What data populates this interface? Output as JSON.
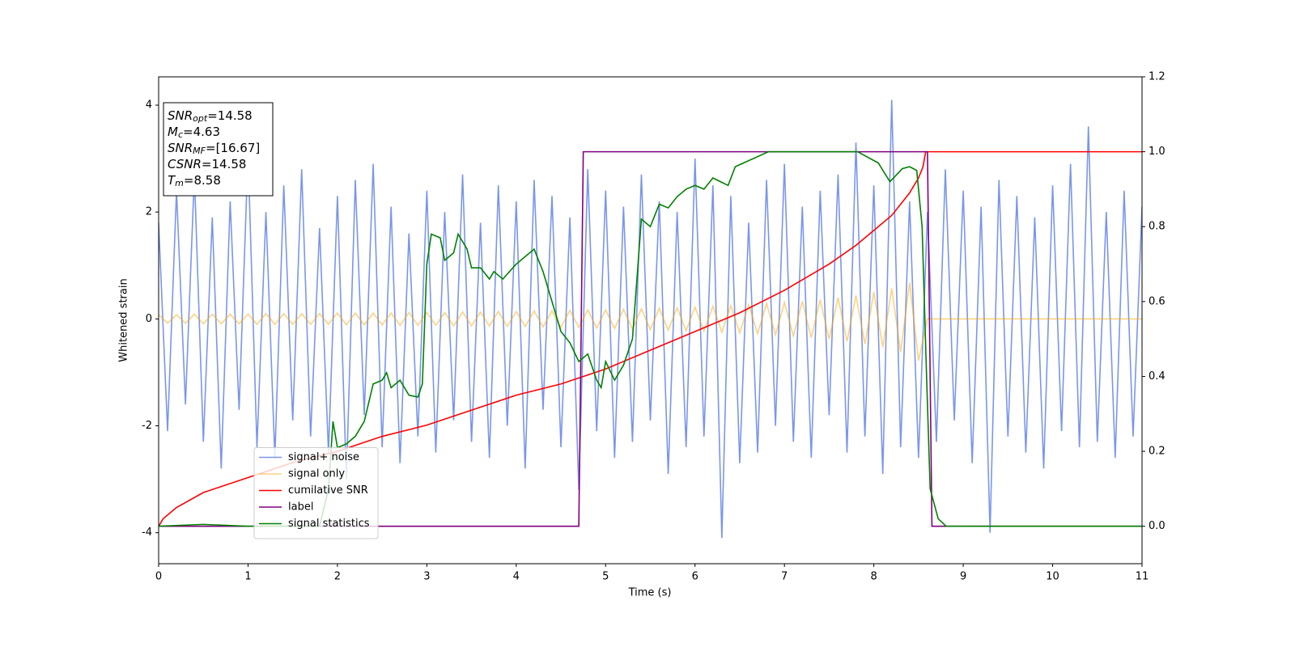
{
  "chart_data": {
    "type": "line",
    "xlabel": "Time (s)",
    "ylabel": "Whitened strain",
    "x": [
      0,
      0.1,
      0.2,
      0.3,
      0.4,
      0.5,
      0.6,
      0.7,
      0.8,
      0.9,
      1,
      1.1,
      1.2,
      1.3,
      1.4,
      1.5,
      1.6,
      1.7,
      1.8,
      1.9,
      2,
      2.1,
      2.2,
      2.3,
      2.4,
      2.5,
      2.6,
      2.7,
      2.8,
      2.9,
      3,
      3.1,
      3.2,
      3.3,
      3.4,
      3.5,
      3.6,
      3.7,
      3.8,
      3.9,
      4,
      4.1,
      4.2,
      4.3,
      4.4,
      4.5,
      4.6,
      4.7,
      4.8,
      4.9,
      5,
      5.1,
      5.2,
      5.3,
      5.4,
      5.5,
      5.6,
      5.7,
      5.8,
      5.9,
      6,
      6.1,
      6.2,
      6.3,
      6.4,
      6.5,
      6.6,
      6.7,
      6.8,
      6.9,
      7,
      7.1,
      7.2,
      7.3,
      7.4,
      7.5,
      7.6,
      7.7,
      7.8,
      7.9,
      8,
      8.1,
      8.2,
      8.3,
      8.4,
      8.5,
      8.6,
      8.7,
      8.8,
      8.9,
      9,
      9.1,
      9.2,
      9.3,
      9.4,
      9.5,
      9.6,
      9.7,
      9.8,
      9.9,
      10,
      10.1,
      10.2,
      10.3,
      10.4,
      10.5,
      10.6,
      10.7,
      10.8,
      10.9,
      11
    ],
    "series": [
      {
        "name": "signal+ noise",
        "color": "#4169e1",
        "alpha": 0.7,
        "values": [
          1.8,
          -2.1,
          2.4,
          -1.6,
          2.7,
          -2.3,
          1.9,
          -2.8,
          2.2,
          -1.7,
          3.1,
          -2.4,
          2.0,
          -2.6,
          2.5,
          -1.9,
          2.8,
          -2.2,
          1.7,
          -2.5,
          2.3,
          -3.0,
          2.6,
          -1.8,
          2.9,
          -2.4,
          2.1,
          -2.7,
          1.6,
          -2.2,
          2.4,
          -2.5,
          2.0,
          -1.9,
          2.7,
          -2.3,
          1.8,
          -2.6,
          2.5,
          -2.0,
          2.2,
          -2.8,
          2.6,
          -1.7,
          2.3,
          -2.4,
          1.9,
          -3.2,
          2.8,
          -2.1,
          2.4,
          -2.6,
          2.1,
          -2.3,
          2.7,
          -1.9,
          2.2,
          -2.9,
          2.0,
          -2.4,
          3.0,
          -2.2,
          2.5,
          -4.1,
          2.3,
          -2.7,
          1.8,
          -2.5,
          2.6,
          -2.0,
          2.9,
          -2.3,
          2.1,
          -2.6,
          2.4,
          -1.8,
          2.7,
          -2.5,
          3.3,
          -2.2,
          2.5,
          -2.9,
          4.1,
          -2.4,
          2.2,
          -2.6,
          2.0,
          -2.3,
          2.8,
          -1.9,
          2.4,
          -2.7,
          2.1,
          -4.0,
          2.6,
          -2.2,
          2.3,
          -2.5,
          1.9,
          -2.8,
          2.5,
          -2.1,
          2.9,
          -2.4,
          3.6,
          -2.3,
          2.0,
          -2.6,
          2.4,
          -2.2,
          2.1
        ]
      },
      {
        "name": "signal only",
        "color": "#ffa500",
        "alpha": 0.5,
        "values": [
          0.08,
          -0.08,
          0.08,
          -0.08,
          0.09,
          -0.09,
          0.09,
          -0.09,
          0.09,
          -0.09,
          0.09,
          -0.1,
          0.1,
          -0.1,
          0.1,
          -0.1,
          0.1,
          -0.1,
          0.1,
          -0.1,
          0.11,
          -0.11,
          0.11,
          -0.11,
          0.11,
          -0.11,
          0.11,
          -0.12,
          0.12,
          -0.12,
          0.12,
          -0.12,
          0.12,
          -0.13,
          0.13,
          -0.13,
          0.13,
          -0.13,
          0.14,
          -0.14,
          0.14,
          -0.14,
          0.15,
          -0.15,
          0.15,
          -0.16,
          0.16,
          -0.16,
          0.17,
          -0.17,
          0.17,
          -0.18,
          0.18,
          -0.19,
          0.19,
          -0.2,
          0.2,
          -0.21,
          0.21,
          -0.22,
          0.22,
          -0.23,
          0.24,
          -0.25,
          0.25,
          -0.26,
          0.27,
          -0.28,
          0.29,
          -0.3,
          0.31,
          -0.32,
          0.33,
          -0.35,
          0.36,
          -0.38,
          0.4,
          -0.42,
          0.44,
          -0.47,
          0.5,
          -0.53,
          0.57,
          -0.62,
          0.68,
          -0.78,
          0,
          0,
          0,
          0,
          0,
          0,
          0,
          0,
          0,
          0,
          0,
          0,
          0,
          0,
          0,
          0,
          0,
          0,
          0,
          0,
          0,
          0,
          0,
          0,
          0
        ]
      },
      {
        "name": "cumilative SNR",
        "color": "#ff0000",
        "alpha": 1,
        "axis": "y2",
        "x": [
          0,
          0.05,
          0.2,
          0.5,
          1,
          1.5,
          2,
          2.5,
          3,
          3.5,
          4,
          4.5,
          5,
          5.5,
          6,
          6.5,
          7,
          7.5,
          7.8,
          8,
          8.2,
          8.3,
          8.4,
          8.5,
          8.55,
          8.58,
          8.7,
          11
        ],
        "values": [
          0.0,
          0.02,
          0.05,
          0.09,
          0.13,
          0.17,
          0.2,
          0.24,
          0.27,
          0.31,
          0.35,
          0.38,
          0.42,
          0.47,
          0.52,
          0.57,
          0.63,
          0.7,
          0.75,
          0.79,
          0.83,
          0.86,
          0.89,
          0.93,
          0.96,
          1.0,
          1.0,
          1.0
        ]
      },
      {
        "name": "label",
        "color": "#800080",
        "alpha": 1,
        "axis": "y2",
        "x": [
          0,
          4.7,
          4.75,
          8.6,
          8.65,
          11
        ],
        "values": [
          0,
          0,
          1,
          1,
          0,
          0
        ]
      },
      {
        "name": "signal statistics",
        "color": "#008000",
        "alpha": 1,
        "axis": "y2",
        "x": [
          0,
          0.5,
          1,
          1.8,
          1.9,
          1.95,
          2.0,
          2.1,
          2.2,
          2.3,
          2.4,
          2.5,
          2.55,
          2.6,
          2.7,
          2.8,
          2.9,
          2.95,
          3.0,
          3.05,
          3.15,
          3.2,
          3.3,
          3.35,
          3.45,
          3.5,
          3.6,
          3.7,
          3.75,
          3.85,
          4.0,
          4.1,
          4.2,
          4.3,
          4.4,
          4.5,
          4.6,
          4.7,
          4.8,
          4.9,
          4.95,
          5.0,
          5.1,
          5.2,
          5.3,
          5.4,
          5.5,
          5.6,
          5.7,
          5.8,
          5.9,
          6.0,
          6.1,
          6.2,
          6.37,
          6.45,
          6.82,
          7.82,
          8.05,
          8.18,
          8.32,
          8.4,
          8.48,
          8.54,
          8.59,
          8.63,
          8.72,
          8.81,
          11
        ],
        "values": [
          0,
          0.005,
          0,
          0,
          0.1,
          0.28,
          0.21,
          0.22,
          0.24,
          0.28,
          0.38,
          0.39,
          0.41,
          0.37,
          0.39,
          0.35,
          0.345,
          0.38,
          0.7,
          0.78,
          0.77,
          0.71,
          0.73,
          0.78,
          0.74,
          0.69,
          0.69,
          0.66,
          0.68,
          0.66,
          0.7,
          0.72,
          0.74,
          0.68,
          0.6,
          0.52,
          0.49,
          0.44,
          0.46,
          0.39,
          0.37,
          0.44,
          0.39,
          0.43,
          0.5,
          0.82,
          0.8,
          0.86,
          0.85,
          0.88,
          0.9,
          0.91,
          0.9,
          0.93,
          0.91,
          0.96,
          1.0,
          1.0,
          0.97,
          0.92,
          0.955,
          0.96,
          0.95,
          0.8,
          0.4,
          0.1,
          0.02,
          0,
          0
        ]
      }
    ],
    "xlim": [
      0,
      11
    ],
    "xticks": [
      0,
      1,
      2,
      3,
      4,
      5,
      6,
      7,
      8,
      9,
      10,
      11
    ],
    "ylim": [
      -4.58,
      4.53
    ],
    "yticks": [
      -4,
      -2,
      0,
      2,
      4
    ],
    "y2lim": [
      -0.1,
      1.2
    ],
    "y2ticks": [
      {
        "value": 0,
        "label": "0.0"
      },
      0.2,
      0.4,
      0.6,
      0.8,
      {
        "value": 1,
        "label": "1.0"
      },
      1.2
    ],
    "legend": "lower left",
    "annotation": [
      {
        "label": "SNR",
        "sub": "opt",
        "text": "=14.58"
      },
      {
        "label": "M",
        "sub": "c",
        "text": "=4.63"
      },
      {
        "label": "SNR",
        "sub": "MF",
        "text": "=[16.67]"
      },
      {
        "label": "CSNR",
        "text": "=14.58"
      },
      {
        "label": "T",
        "sub": "m",
        "text": "=8.58"
      }
    ]
  }
}
